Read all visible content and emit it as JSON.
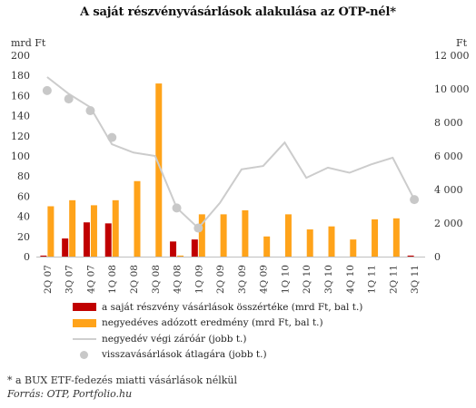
{
  "title": "A saját részvényvásárlások alakulása az OTP-nél*",
  "footnote": "* a  BUX ETF-fedezés miatti vásárlások nélkül",
  "source": "Forrás: OTP, Portfolio.hu",
  "colors": {
    "buyback_bar": "#c00000",
    "profit_bar": "#ffa31a",
    "price_line": "#cccccc",
    "avg_dot": "#c8c8c8",
    "axis": "#bfbfbf",
    "text": "#333333"
  },
  "legend": [
    {
      "key": "buyback",
      "label": "a saját részvény vásárlások összértéke (mrd Ft, bal t.)"
    },
    {
      "key": "profit",
      "label": "negyedéves adózott eredmény (mrd Ft, bal t.)"
    },
    {
      "key": "price",
      "label": "negyedév végi záróár (jobb t.)"
    },
    {
      "key": "avg",
      "label": "visszavásárlások átlagára (jobb t.)"
    }
  ],
  "chart_data": {
    "type": "bar",
    "title": "A saját részvényvásárlások alakulása az OTP-nél*",
    "categories": [
      "2Q 07",
      "3Q 07",
      "4Q 07",
      "1Q 08",
      "2Q 08",
      "3Q 08",
      "4Q 08",
      "1Q 09",
      "2Q 09",
      "3Q 09",
      "4Q 09",
      "1Q 10",
      "2Q 10",
      "3Q 10",
      "4Q 10",
      "1Q 11",
      "2Q 11",
      "3Q 11"
    ],
    "left_axis": {
      "unit_label": "mrd Ft",
      "ylim": [
        0,
        200
      ],
      "ticks": [
        "0",
        "20",
        "40",
        "60",
        "80",
        "100",
        "120",
        "140",
        "160",
        "180",
        "200"
      ]
    },
    "right_axis": {
      "unit_label": "Ft",
      "ylim": [
        0,
        12000
      ],
      "ticks": [
        "0",
        "2 000",
        "4 000",
        "6 000",
        "8 000",
        "10 000",
        "12 000"
      ]
    },
    "series": [
      {
        "name": "a saját részvény vásárlások összértéke (mrd Ft, bal t.)",
        "type": "bar",
        "axis": "left",
        "values": [
          1,
          18,
          34,
          33,
          0,
          0,
          15,
          17,
          0,
          0,
          0,
          0,
          0,
          0,
          0,
          0,
          0,
          1
        ]
      },
      {
        "name": "negyedéves adózott eredmény (mrd Ft, bal t.)",
        "type": "bar",
        "axis": "left",
        "values": [
          50,
          56,
          51,
          56,
          75,
          172,
          1,
          42,
          42,
          46,
          20,
          42,
          27,
          30,
          17,
          37,
          38,
          0
        ]
      },
      {
        "name": "negyedév végi záróár (jobb t.)",
        "type": "line",
        "axis": "right",
        "values": [
          10700,
          9700,
          8900,
          6700,
          6200,
          6000,
          2900,
          1700,
          3200,
          5200,
          5400,
          6800,
          4700,
          5300,
          5000,
          5500,
          5900,
          3400
        ]
      },
      {
        "name": "visszavásárlások átlagára (jobb t.)",
        "type": "scatter",
        "axis": "right",
        "x": [
          "2Q 07",
          "3Q 07",
          "4Q 07",
          "1Q 08",
          "4Q 08",
          "1Q 09",
          "3Q 11"
        ],
        "values": [
          9900,
          9400,
          8700,
          7100,
          2900,
          1700,
          3400
        ]
      }
    ],
    "grid": false,
    "legend_position": "bottom"
  }
}
